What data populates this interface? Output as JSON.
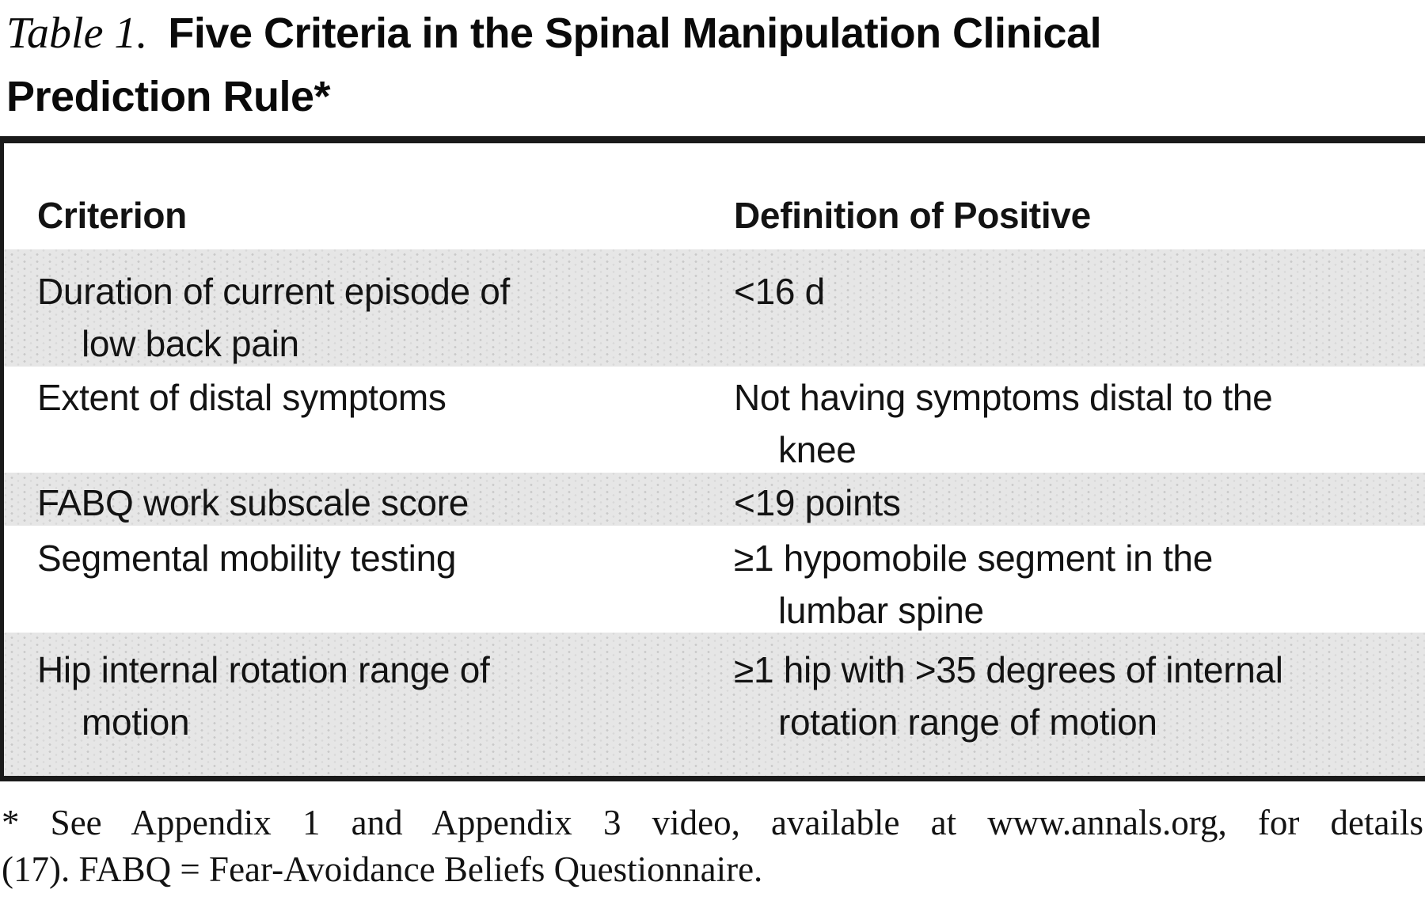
{
  "title": {
    "prefix": "Table 1.",
    "line1": "Five Criteria in the Spinal Manipulation Clinical",
    "line2": "Prediction Rule*"
  },
  "table": {
    "headers": {
      "criterion": "Criterion",
      "definition": "Definition of Positive"
    },
    "rows": [
      {
        "criterion_lines": [
          "Duration of current episode of",
          "low back pain"
        ],
        "definition_lines": [
          "<16 d"
        ],
        "shaded": true
      },
      {
        "criterion_lines": [
          "Extent of distal symptoms"
        ],
        "definition_lines": [
          "Not having symptoms distal to the",
          "knee"
        ],
        "shaded": false
      },
      {
        "criterion_lines": [
          "FABQ work subscale score"
        ],
        "definition_lines": [
          "<19 points"
        ],
        "shaded": true
      },
      {
        "criterion_lines": [
          "Segmental mobility testing"
        ],
        "definition_lines": [
          "≥1 hypomobile segment in the",
          "lumbar spine"
        ],
        "shaded": false
      },
      {
        "criterion_lines": [
          "Hip internal rotation range of",
          "motion"
        ],
        "definition_lines": [
          "≥1 hip with >35 degrees of internal",
          "rotation range of motion"
        ],
        "shaded": true
      }
    ]
  },
  "footnote": {
    "line1": "* See Appendix 1 and Appendix 3 video, available at www.annals.org, for details",
    "line2": "(17). FABQ = Fear-Avoidance Beliefs Questionnaire."
  },
  "colors": {
    "shaded_row": "#e6e6e6",
    "text": "#111111",
    "border": "#1a1a1a"
  }
}
